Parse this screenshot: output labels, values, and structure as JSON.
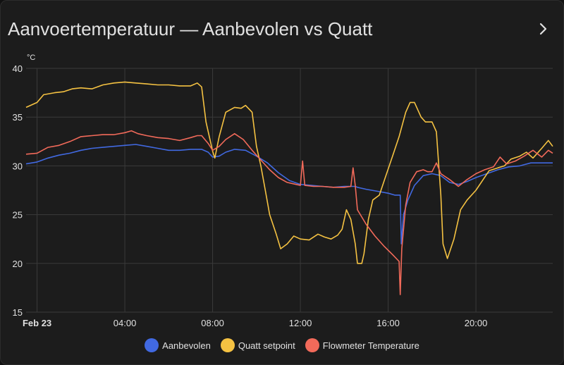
{
  "card": {
    "title": "Aanvoertemperatuur — Aanbevolen vs Quatt"
  },
  "colors": {
    "background": "#1c1c1c",
    "grid": "#3a3a3a",
    "text": "#e1e1e1"
  },
  "chart_data": {
    "type": "line",
    "title": "Aanvoertemperatuur — Aanbevolen vs Quatt",
    "ylabel": "°C",
    "xlabel": "",
    "xlim": [
      -0.5,
      23.5
    ],
    "ylim": [
      15,
      40
    ],
    "yticks": [
      15,
      20,
      25,
      30,
      35,
      40
    ],
    "xticks": [
      {
        "x": 0,
        "label": "Feb 23",
        "bold": true
      },
      {
        "x": 4,
        "label": "04:00"
      },
      {
        "x": 8,
        "label": "08:00"
      },
      {
        "x": 12,
        "label": "12:00"
      },
      {
        "x": 16,
        "label": "16:00"
      },
      {
        "x": 20,
        "label": "20:00"
      }
    ],
    "grid": true,
    "legend_position": "bottom",
    "series": [
      {
        "name": "Aanbevolen",
        "color": "#4169e1",
        "points": [
          [
            -0.5,
            30.2
          ],
          [
            0,
            30.4
          ],
          [
            0.5,
            30.8
          ],
          [
            1,
            31.1
          ],
          [
            1.5,
            31.3
          ],
          [
            2,
            31.6
          ],
          [
            2.5,
            31.8
          ],
          [
            3,
            31.9
          ],
          [
            3.5,
            32.0
          ],
          [
            4,
            32.1
          ],
          [
            4.5,
            32.2
          ],
          [
            5,
            32.0
          ],
          [
            5.5,
            31.8
          ],
          [
            6,
            31.6
          ],
          [
            6.5,
            31.6
          ],
          [
            7,
            31.7
          ],
          [
            7.5,
            31.7
          ],
          [
            7.8,
            31.4
          ],
          [
            8,
            30.9
          ],
          [
            8.3,
            31.0
          ],
          [
            8.6,
            31.4
          ],
          [
            9,
            31.7
          ],
          [
            9.5,
            31.6
          ],
          [
            10,
            31.0
          ],
          [
            10.5,
            30.3
          ],
          [
            11,
            29.3
          ],
          [
            11.5,
            28.5
          ],
          [
            12,
            28.1
          ],
          [
            12.5,
            28.0
          ],
          [
            13,
            27.9
          ],
          [
            13.5,
            27.8
          ],
          [
            14,
            27.9
          ],
          [
            14.5,
            27.9
          ],
          [
            14.6,
            27.8
          ],
          [
            15,
            27.6
          ],
          [
            15.5,
            27.4
          ],
          [
            16,
            27.2
          ],
          [
            16.3,
            27.0
          ],
          [
            16.55,
            27.0
          ],
          [
            16.6,
            22.0
          ],
          [
            16.7,
            25.0
          ],
          [
            16.9,
            26.5
          ],
          [
            17.2,
            28.0
          ],
          [
            17.6,
            29.0
          ],
          [
            18,
            29.2
          ],
          [
            18.4,
            29.0
          ],
          [
            18.8,
            28.3
          ],
          [
            19.2,
            28.1
          ],
          [
            19.6,
            28.4
          ],
          [
            20,
            28.8
          ],
          [
            20.5,
            29.2
          ],
          [
            21,
            29.6
          ],
          [
            21.5,
            29.9
          ],
          [
            22,
            30.0
          ],
          [
            22.5,
            30.3
          ],
          [
            23,
            30.3
          ],
          [
            23.5,
            30.3
          ]
        ]
      },
      {
        "name": "Quatt setpoint",
        "color": "#f5c242",
        "points": [
          [
            -0.5,
            36.0
          ],
          [
            0,
            36.5
          ],
          [
            0.3,
            37.3
          ],
          [
            0.8,
            37.5
          ],
          [
            1.2,
            37.6
          ],
          [
            1.6,
            37.9
          ],
          [
            2,
            38.0
          ],
          [
            2.5,
            37.9
          ],
          [
            3,
            38.3
          ],
          [
            3.5,
            38.5
          ],
          [
            4,
            38.6
          ],
          [
            4.5,
            38.5
          ],
          [
            5,
            38.4
          ],
          [
            5.5,
            38.3
          ],
          [
            6,
            38.3
          ],
          [
            6.5,
            38.2
          ],
          [
            7,
            38.2
          ],
          [
            7.3,
            38.5
          ],
          [
            7.5,
            38.1
          ],
          [
            7.7,
            34.5
          ],
          [
            8,
            31.5
          ],
          [
            8.1,
            30.8
          ],
          [
            8.3,
            33.0
          ],
          [
            8.6,
            35.5
          ],
          [
            9,
            36.0
          ],
          [
            9.3,
            35.9
          ],
          [
            9.5,
            36.2
          ],
          [
            9.8,
            35.5
          ],
          [
            10,
            32.0
          ],
          [
            10.2,
            30.0
          ],
          [
            10.4,
            27.5
          ],
          [
            10.6,
            25.0
          ],
          [
            10.9,
            23.0
          ],
          [
            11.1,
            21.5
          ],
          [
            11.4,
            22.0
          ],
          [
            11.7,
            22.8
          ],
          [
            12,
            22.5
          ],
          [
            12.4,
            22.4
          ],
          [
            12.8,
            23.0
          ],
          [
            13.1,
            22.7
          ],
          [
            13.4,
            22.5
          ],
          [
            13.7,
            22.9
          ],
          [
            13.9,
            23.5
          ],
          [
            14.1,
            25.5
          ],
          [
            14.3,
            24.5
          ],
          [
            14.5,
            22.0
          ],
          [
            14.6,
            20.0
          ],
          [
            14.8,
            20.0
          ],
          [
            14.9,
            21.0
          ],
          [
            15.1,
            24.5
          ],
          [
            15.3,
            26.5
          ],
          [
            15.6,
            27.0
          ],
          [
            15.9,
            29.0
          ],
          [
            16.2,
            31.0
          ],
          [
            16.5,
            33.0
          ],
          [
            16.8,
            35.5
          ],
          [
            17,
            36.5
          ],
          [
            17.2,
            36.5
          ],
          [
            17.5,
            35.0
          ],
          [
            17.7,
            34.5
          ],
          [
            18,
            34.5
          ],
          [
            18.2,
            33.5
          ],
          [
            18.4,
            27.0
          ],
          [
            18.5,
            22.0
          ],
          [
            18.7,
            20.5
          ],
          [
            19,
            22.5
          ],
          [
            19.3,
            25.5
          ],
          [
            19.6,
            26.5
          ],
          [
            20,
            27.5
          ],
          [
            20.3,
            28.5
          ],
          [
            20.6,
            29.5
          ],
          [
            21,
            29.8
          ],
          [
            21.3,
            30.0
          ],
          [
            21.6,
            30.7
          ],
          [
            22,
            31.0
          ],
          [
            22.3,
            31.4
          ],
          [
            22.6,
            30.8
          ],
          [
            23,
            31.8
          ],
          [
            23.3,
            32.6
          ],
          [
            23.5,
            32.0
          ]
        ]
      },
      {
        "name": "Flowmeter Temperature",
        "color": "#f26a5a",
        "points": [
          [
            -0.5,
            31.2
          ],
          [
            0,
            31.3
          ],
          [
            0.5,
            31.9
          ],
          [
            1,
            32.1
          ],
          [
            1.5,
            32.5
          ],
          [
            2,
            33.0
          ],
          [
            2.5,
            33.1
          ],
          [
            3,
            33.2
          ],
          [
            3.5,
            33.2
          ],
          [
            4,
            33.4
          ],
          [
            4.3,
            33.6
          ],
          [
            4.6,
            33.3
          ],
          [
            5,
            33.1
          ],
          [
            5.5,
            32.9
          ],
          [
            6,
            32.8
          ],
          [
            6.5,
            32.6
          ],
          [
            7,
            32.9
          ],
          [
            7.3,
            33.1
          ],
          [
            7.5,
            33.1
          ],
          [
            7.8,
            32.3
          ],
          [
            8,
            31.6
          ],
          [
            8.3,
            32.0
          ],
          [
            8.6,
            32.7
          ],
          [
            9,
            33.3
          ],
          [
            9.4,
            32.7
          ],
          [
            9.8,
            31.6
          ],
          [
            10.2,
            30.6
          ],
          [
            10.6,
            29.6
          ],
          [
            11,
            28.8
          ],
          [
            11.4,
            28.3
          ],
          [
            11.8,
            28.1
          ],
          [
            12,
            28.0
          ],
          [
            12.1,
            30.5
          ],
          [
            12.2,
            28.0
          ],
          [
            12.6,
            27.9
          ],
          [
            13,
            27.9
          ],
          [
            13.5,
            27.8
          ],
          [
            14,
            27.8
          ],
          [
            14.3,
            27.9
          ],
          [
            14.4,
            29.8
          ],
          [
            14.5,
            28.0
          ],
          [
            14.6,
            25.5
          ],
          [
            15,
            24.0
          ],
          [
            15.4,
            22.8
          ],
          [
            15.8,
            21.8
          ],
          [
            16.2,
            20.9
          ],
          [
            16.5,
            20.2
          ],
          [
            16.55,
            16.8
          ],
          [
            16.62,
            21.5
          ],
          [
            16.8,
            26.0
          ],
          [
            17,
            28.3
          ],
          [
            17.3,
            29.4
          ],
          [
            17.6,
            29.6
          ],
          [
            17.8,
            29.4
          ],
          [
            18,
            29.4
          ],
          [
            18.2,
            30.3
          ],
          [
            18.4,
            29.2
          ],
          [
            18.8,
            28.6
          ],
          [
            19.2,
            27.9
          ],
          [
            19.6,
            28.6
          ],
          [
            20,
            29.2
          ],
          [
            20.4,
            29.6
          ],
          [
            20.8,
            29.9
          ],
          [
            21.1,
            30.9
          ],
          [
            21.4,
            30.2
          ],
          [
            21.8,
            30.5
          ],
          [
            22.2,
            31.0
          ],
          [
            22.6,
            31.6
          ],
          [
            23,
            30.9
          ],
          [
            23.3,
            31.6
          ],
          [
            23.5,
            31.3
          ]
        ]
      }
    ]
  }
}
